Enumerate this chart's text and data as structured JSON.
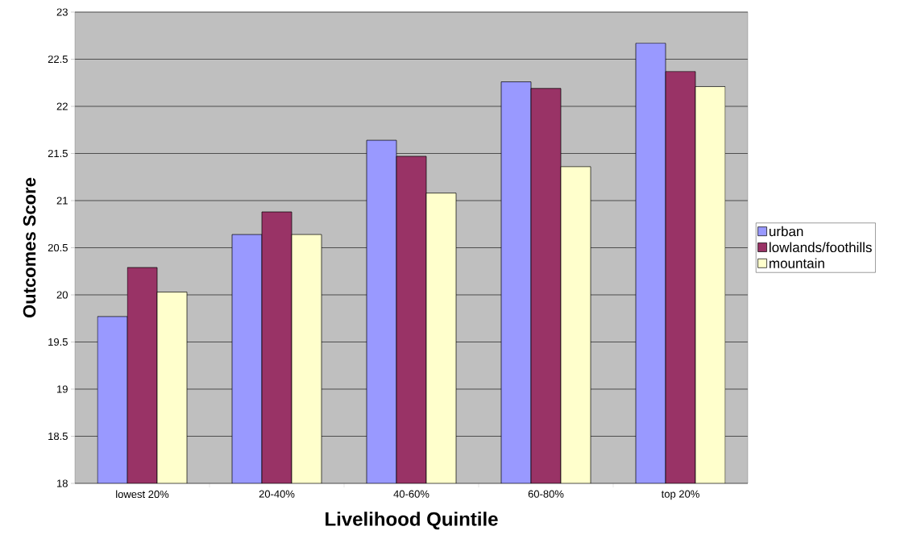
{
  "chart_data": {
    "type": "bar",
    "xlabel": "Livelihood Quintile",
    "ylabel": "Outcomes Score",
    "categories": [
      "lowest 20%",
      "20-40%",
      "40-60%",
      "60-80%",
      "top 20%"
    ],
    "series": [
      {
        "name": "urban",
        "color": "#9999ff",
        "values": [
          19.77,
          20.64,
          21.64,
          22.26,
          22.67
        ]
      },
      {
        "name": "lowlands/foothills",
        "color": "#993366",
        "values": [
          20.29,
          20.88,
          21.47,
          22.19,
          22.37
        ]
      },
      {
        "name": "mountain",
        "color": "#ffffcc",
        "values": [
          20.03,
          20.64,
          21.08,
          21.36,
          22.21
        ]
      }
    ],
    "ylim": [
      18,
      23
    ],
    "yticks": [
      18,
      18.5,
      19,
      19.5,
      20,
      20.5,
      21,
      21.5,
      22,
      22.5,
      23
    ],
    "grid": "y",
    "legend": "right"
  }
}
